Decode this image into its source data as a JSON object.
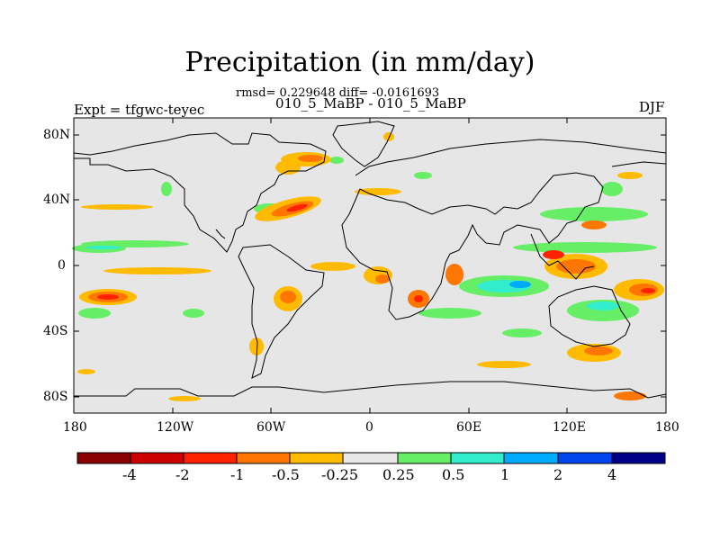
{
  "title": "Precipitation (in mm/day)",
  "stats": "rmsd= 0.229648 diff= -0.0161693",
  "subtitle": "010_5_MaBP - 010_5_MaBP",
  "experiment": "Expt = tfgwc-teyec",
  "season": "DJF",
  "lat_labels": [
    "80N",
    "40N",
    "0",
    "40S",
    "80S"
  ],
  "lon_labels": [
    "180",
    "120W",
    "60W",
    "0",
    "60E",
    "120E",
    "180"
  ],
  "colorbar": {
    "colors": [
      "#8b0000",
      "#cc0000",
      "#ff2200",
      "#ff7700",
      "#ffbb00",
      "#e8e8e8",
      "#66ee66",
      "#33eecc",
      "#00aaff",
      "#0044ee",
      "#000088"
    ],
    "labels": [
      "-4",
      "-2",
      "-1",
      "-0.5",
      "-0.25",
      "0.25",
      "0.5",
      "1",
      "2",
      "4"
    ]
  },
  "colors": {
    "ocean_background": "#e6e6e6",
    "coastline": "#000000"
  }
}
